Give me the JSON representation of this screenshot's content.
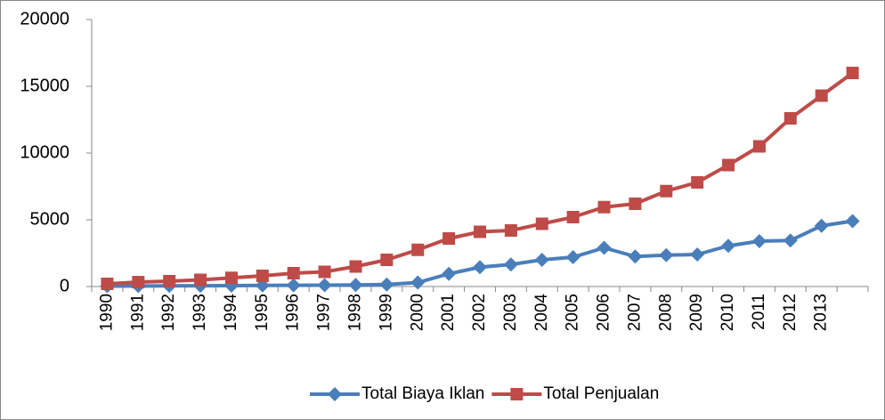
{
  "chart_data": {
    "type": "line",
    "categories": [
      "1990",
      "1991",
      "1992",
      "1993",
      "1994",
      "1995",
      "1996",
      "1997",
      "1998",
      "1999",
      "2000",
      "2001",
      "2002",
      "2003",
      "2004",
      "2005",
      "2006",
      "2007",
      "2008",
      "2009",
      "2010",
      "2011",
      "2012",
      "2013",
      null
    ],
    "series": [
      {
        "name": "Total Biaya Iklan",
        "color": "#4a7ebb",
        "marker": "diamond",
        "values": [
          30,
          40,
          50,
          60,
          70,
          80,
          90,
          100,
          120,
          150,
          300,
          950,
          1450,
          1650,
          2000,
          2200,
          2900,
          2250,
          2350,
          2400,
          3050,
          3400,
          3450,
          4550,
          4900
        ]
      },
      {
        "name": "Total Penjualan",
        "color": "#be4b48",
        "marker": "square",
        "values": [
          200,
          330,
          400,
          500,
          650,
          800,
          1000,
          1100,
          1500,
          2000,
          2750,
          3600,
          4100,
          4200,
          4700,
          5200,
          5950,
          6200,
          7150,
          7800,
          9100,
          10500,
          12600,
          14300,
          16000
        ]
      }
    ],
    "ylim": [
      0,
      20000
    ],
    "yticks": [
      0,
      5000,
      10000,
      15000,
      20000
    ],
    "grid": false,
    "legend": "bottom"
  }
}
